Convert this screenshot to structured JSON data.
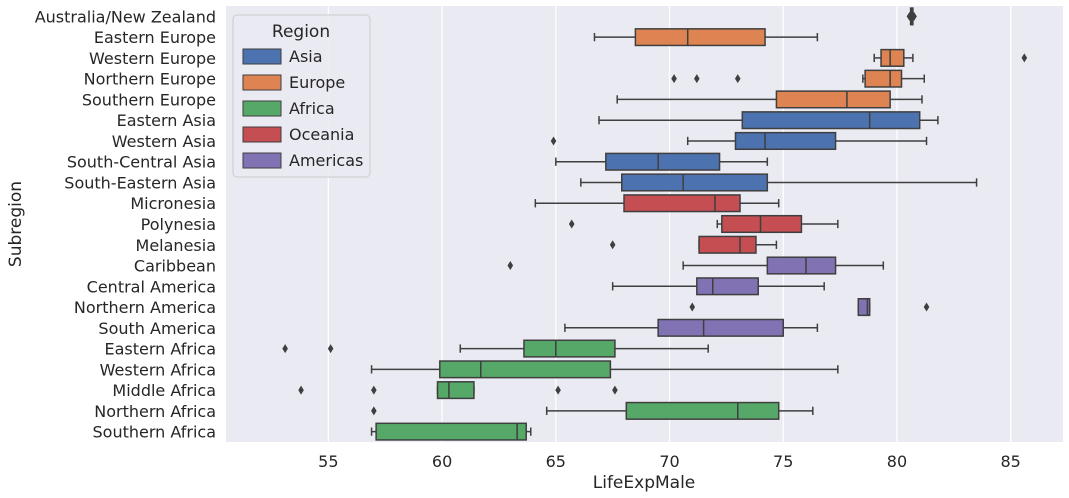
{
  "chart_data": {
    "type": "boxplot",
    "orientation": "horizontal",
    "xlabel": "LifeExpMale",
    "ylabel": "Subregion",
    "xlim": [
      50.5,
      87.3
    ],
    "xticks": [
      55,
      60,
      65,
      70,
      75,
      80,
      85
    ],
    "grid": true,
    "legend": {
      "title": "Region",
      "placement": "top-left",
      "entries": [
        {
          "name": "Asia",
          "color": "#4c72b0"
        },
        {
          "name": "Europe",
          "color": "#dd8452"
        },
        {
          "name": "Africa",
          "color": "#55a868"
        },
        {
          "name": "Oceania",
          "color": "#c44e52"
        },
        {
          "name": "Americas",
          "color": "#8172b3"
        }
      ]
    },
    "categories": [
      {
        "name": "Australia/New Zealand",
        "region": "Oceania",
        "whisker_low": 80.6,
        "q1": 80.6,
        "median": 80.65,
        "q3": 80.7,
        "whisker_high": 80.7,
        "outliers": [
          80.55,
          80.75
        ]
      },
      {
        "name": "Eastern Europe",
        "region": "Europe",
        "whisker_low": 66.7,
        "q1": 68.5,
        "median": 70.8,
        "q3": 74.2,
        "whisker_high": 76.5,
        "outliers": []
      },
      {
        "name": "Western Europe",
        "region": "Europe",
        "whisker_low": 79.0,
        "q1": 79.3,
        "median": 79.7,
        "q3": 80.3,
        "whisker_high": 80.7,
        "outliers": [
          85.6
        ]
      },
      {
        "name": "Northern Europe",
        "region": "Europe",
        "whisker_low": 78.5,
        "q1": 78.6,
        "median": 79.7,
        "q3": 80.2,
        "whisker_high": 81.2,
        "outliers": [
          70.2,
          71.2,
          73.0
        ]
      },
      {
        "name": "Southern Europe",
        "region": "Europe",
        "whisker_low": 67.7,
        "q1": 74.7,
        "median": 77.8,
        "q3": 79.7,
        "whisker_high": 81.1,
        "outliers": []
      },
      {
        "name": "Eastern Asia",
        "region": "Asia",
        "whisker_low": 66.9,
        "q1": 73.2,
        "median": 78.8,
        "q3": 81.0,
        "whisker_high": 81.8,
        "outliers": []
      },
      {
        "name": "Western Asia",
        "region": "Asia",
        "whisker_low": 70.8,
        "q1": 72.9,
        "median": 74.2,
        "q3": 77.3,
        "whisker_high": 81.3,
        "outliers": [
          64.9
        ]
      },
      {
        "name": "South-Central Asia",
        "region": "Asia",
        "whisker_low": 65.0,
        "q1": 67.2,
        "median": 69.5,
        "q3": 72.2,
        "whisker_high": 74.3,
        "outliers": []
      },
      {
        "name": "South-Eastern Asia",
        "region": "Asia",
        "whisker_low": 66.1,
        "q1": 67.9,
        "median": 70.6,
        "q3": 74.3,
        "whisker_high": 83.5,
        "outliers": []
      },
      {
        "name": "Micronesia",
        "region": "Oceania",
        "whisker_low": 64.1,
        "q1": 68.0,
        "median": 72.0,
        "q3": 73.1,
        "whisker_high": 74.8,
        "outliers": []
      },
      {
        "name": "Polynesia",
        "region": "Oceania",
        "whisker_low": 72.1,
        "q1": 72.3,
        "median": 74.0,
        "q3": 75.8,
        "whisker_high": 77.4,
        "outliers": [
          65.7
        ]
      },
      {
        "name": "Melanesia",
        "region": "Oceania",
        "whisker_low": 71.3,
        "q1": 71.3,
        "median": 73.1,
        "q3": 73.8,
        "whisker_high": 74.7,
        "outliers": [
          67.5
        ]
      },
      {
        "name": "Caribbean",
        "region": "Americas",
        "whisker_low": 70.6,
        "q1": 74.3,
        "median": 76.0,
        "q3": 77.3,
        "whisker_high": 79.4,
        "outliers": [
          63.0
        ]
      },
      {
        "name": "Central America",
        "region": "Americas",
        "whisker_low": 67.5,
        "q1": 71.2,
        "median": 71.9,
        "q3": 73.9,
        "whisker_high": 76.8,
        "outliers": []
      },
      {
        "name": "Northern America",
        "region": "Americas",
        "whisker_low": 78.3,
        "q1": 78.3,
        "median": 78.7,
        "q3": 78.8,
        "whisker_high": 78.8,
        "outliers": [
          71.0,
          81.3
        ]
      },
      {
        "name": "South America",
        "region": "Americas",
        "whisker_low": 65.4,
        "q1": 69.5,
        "median": 71.5,
        "q3": 75.0,
        "whisker_high": 76.5,
        "outliers": []
      },
      {
        "name": "Eastern Africa",
        "region": "Africa",
        "whisker_low": 60.8,
        "q1": 63.6,
        "median": 65.0,
        "q3": 67.6,
        "whisker_high": 71.7,
        "outliers": [
          53.1,
          55.1
        ]
      },
      {
        "name": "Western Africa",
        "region": "Africa",
        "whisker_low": 56.9,
        "q1": 59.9,
        "median": 61.7,
        "q3": 67.4,
        "whisker_high": 77.4,
        "outliers": []
      },
      {
        "name": "Middle Africa",
        "region": "Africa",
        "whisker_low": 59.8,
        "q1": 59.8,
        "median": 60.3,
        "q3": 61.4,
        "whisker_high": 61.4,
        "outliers": [
          53.8,
          57.0,
          65.1,
          67.6
        ]
      },
      {
        "name": "Northern Africa",
        "region": "Africa",
        "whisker_low": 64.6,
        "q1": 68.1,
        "median": 73.0,
        "q3": 74.8,
        "whisker_high": 76.3,
        "outliers": [
          57.0
        ]
      },
      {
        "name": "Southern Africa",
        "region": "Africa",
        "whisker_low": 56.9,
        "q1": 57.1,
        "median": 63.3,
        "q3": 63.7,
        "whisker_high": 63.9,
        "outliers": []
      }
    ]
  }
}
